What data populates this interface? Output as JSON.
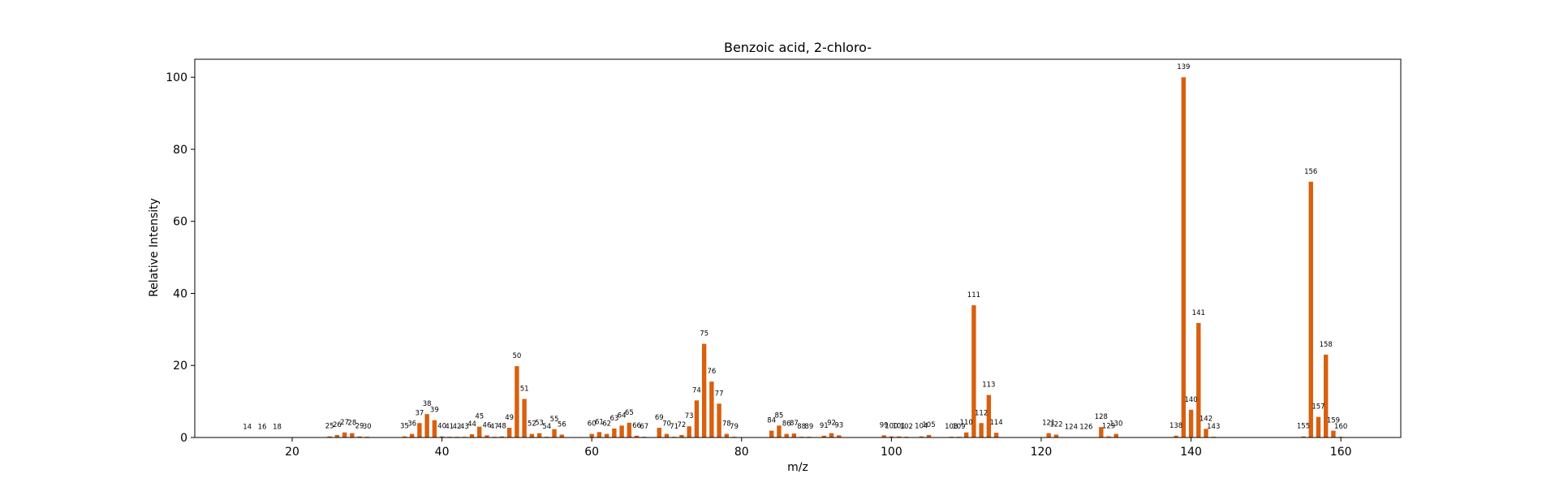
{
  "chart_data": {
    "type": "bar",
    "title": "Benzoic acid, 2-chloro-",
    "xlabel": "m/z",
    "ylabel": "Relative Intensity",
    "xlim": [
      7,
      168
    ],
    "ylim": [
      0,
      105
    ],
    "x_ticks": [
      20,
      40,
      60,
      80,
      100,
      120,
      140,
      160
    ],
    "y_ticks": [
      0,
      20,
      40,
      60,
      80,
      100
    ],
    "grid": false,
    "bar_color": "#d95f0e",
    "peaks": [
      {
        "mz": 14,
        "intensity": 0.1
      },
      {
        "mz": 16,
        "intensity": 0.1
      },
      {
        "mz": 18,
        "intensity": 0.1
      },
      {
        "mz": 25,
        "intensity": 0.3
      },
      {
        "mz": 26,
        "intensity": 0.7
      },
      {
        "mz": 27,
        "intensity": 1.4
      },
      {
        "mz": 28,
        "intensity": 1.2
      },
      {
        "mz": 29,
        "intensity": 0.3
      },
      {
        "mz": 30,
        "intensity": 0.2
      },
      {
        "mz": 35,
        "intensity": 0.3
      },
      {
        "mz": 36,
        "intensity": 1.0
      },
      {
        "mz": 37,
        "intensity": 4.0
      },
      {
        "mz": 38,
        "intensity": 6.5
      },
      {
        "mz": 39,
        "intensity": 4.8
      },
      {
        "mz": 40,
        "intensity": 0.3
      },
      {
        "mz": 41,
        "intensity": 0.2
      },
      {
        "mz": 42,
        "intensity": 0.2
      },
      {
        "mz": 43,
        "intensity": 0.2
      },
      {
        "mz": 44,
        "intensity": 0.9
      },
      {
        "mz": 45,
        "intensity": 3.0
      },
      {
        "mz": 46,
        "intensity": 0.6
      },
      {
        "mz": 47,
        "intensity": 0.2
      },
      {
        "mz": 48,
        "intensity": 0.3
      },
      {
        "mz": 49,
        "intensity": 2.7
      },
      {
        "mz": 50,
        "intensity": 19.8
      },
      {
        "mz": 51,
        "intensity": 10.7
      },
      {
        "mz": 52,
        "intensity": 1.0
      },
      {
        "mz": 53,
        "intensity": 1.2
      },
      {
        "mz": 54,
        "intensity": 0.2
      },
      {
        "mz": 55,
        "intensity": 2.3
      },
      {
        "mz": 56,
        "intensity": 0.8
      },
      {
        "mz": 60,
        "intensity": 1.0
      },
      {
        "mz": 61,
        "intensity": 1.5
      },
      {
        "mz": 62,
        "intensity": 1.0
      },
      {
        "mz": 63,
        "intensity": 2.5
      },
      {
        "mz": 64,
        "intensity": 3.3
      },
      {
        "mz": 65,
        "intensity": 4.1
      },
      {
        "mz": 66,
        "intensity": 0.5
      },
      {
        "mz": 67,
        "intensity": 0.2
      },
      {
        "mz": 69,
        "intensity": 2.7
      },
      {
        "mz": 70,
        "intensity": 1.0
      },
      {
        "mz": 71,
        "intensity": 0.2
      },
      {
        "mz": 72,
        "intensity": 0.7
      },
      {
        "mz": 73,
        "intensity": 3.1
      },
      {
        "mz": 74,
        "intensity": 10.3
      },
      {
        "mz": 75,
        "intensity": 26.0
      },
      {
        "mz": 76,
        "intensity": 15.5
      },
      {
        "mz": 77,
        "intensity": 9.4
      },
      {
        "mz": 78,
        "intensity": 1.0
      },
      {
        "mz": 79,
        "intensity": 0.2
      },
      {
        "mz": 84,
        "intensity": 1.9
      },
      {
        "mz": 85,
        "intensity": 3.3
      },
      {
        "mz": 86,
        "intensity": 1.0
      },
      {
        "mz": 87,
        "intensity": 1.1
      },
      {
        "mz": 88,
        "intensity": 0.2
      },
      {
        "mz": 89,
        "intensity": 0.2
      },
      {
        "mz": 91,
        "intensity": 0.5
      },
      {
        "mz": 92,
        "intensity": 1.2
      },
      {
        "mz": 93,
        "intensity": 0.6
      },
      {
        "mz": 99,
        "intensity": 0.6
      },
      {
        "mz": 100,
        "intensity": 0.3
      },
      {
        "mz": 101,
        "intensity": 0.3
      },
      {
        "mz": 102,
        "intensity": 0.2
      },
      {
        "mz": 104,
        "intensity": 0.3
      },
      {
        "mz": 105,
        "intensity": 0.7
      },
      {
        "mz": 108,
        "intensity": 0.2
      },
      {
        "mz": 109,
        "intensity": 0.2
      },
      {
        "mz": 110,
        "intensity": 1.4
      },
      {
        "mz": 111,
        "intensity": 36.7
      },
      {
        "mz": 112,
        "intensity": 4.0
      },
      {
        "mz": 113,
        "intensity": 11.8
      },
      {
        "mz": 114,
        "intensity": 1.3
      },
      {
        "mz": 121,
        "intensity": 1.2
      },
      {
        "mz": 122,
        "intensity": 0.8
      },
      {
        "mz": 124,
        "intensity": 0.1
      },
      {
        "mz": 126,
        "intensity": 0.1
      },
      {
        "mz": 128,
        "intensity": 2.9
      },
      {
        "mz": 129,
        "intensity": 0.3
      },
      {
        "mz": 130,
        "intensity": 1.0
      },
      {
        "mz": 138,
        "intensity": 0.5
      },
      {
        "mz": 139,
        "intensity": 100.0
      },
      {
        "mz": 140,
        "intensity": 7.7
      },
      {
        "mz": 141,
        "intensity": 31.8
      },
      {
        "mz": 142,
        "intensity": 2.4
      },
      {
        "mz": 143,
        "intensity": 0.2
      },
      {
        "mz": 155,
        "intensity": 0.3
      },
      {
        "mz": 156,
        "intensity": 71.0
      },
      {
        "mz": 157,
        "intensity": 5.7
      },
      {
        "mz": 158,
        "intensity": 23.0
      },
      {
        "mz": 159,
        "intensity": 1.9
      },
      {
        "mz": 160,
        "intensity": 0.2
      }
    ]
  }
}
